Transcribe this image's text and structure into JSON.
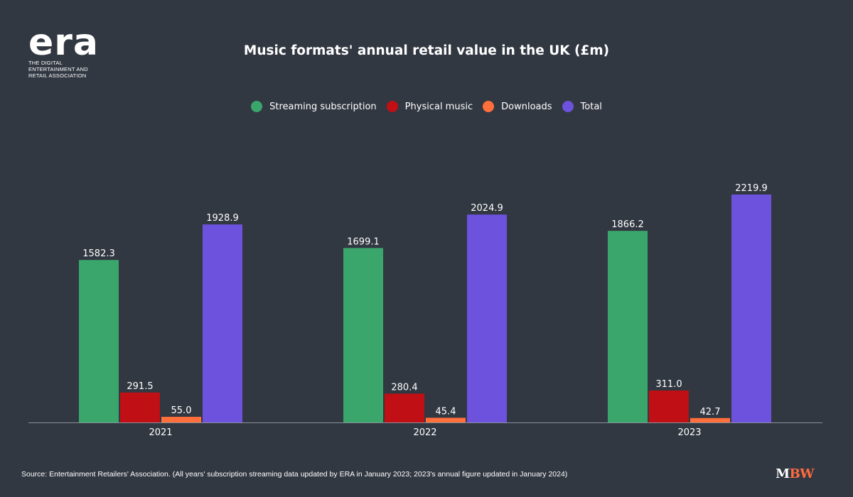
{
  "logo": {
    "wordmark": "era",
    "tagline": "THE DIGITAL ENTERTAINMENT AND RETAIL ASSOCIATION"
  },
  "source_note": "Source: Entertainment Retailers' Association. (All years' subscription streaming data updated by ERA in January 2023; 2023's annual figure updated in January 2024)",
  "publisher_logo": {
    "m": "M",
    "bw": "BW"
  },
  "colors": {
    "background": "#323842",
    "streaming": "#3aa66b",
    "physical": "#c00f15",
    "downloads": "#ff6f3c",
    "total": "#6c52dd",
    "axis": "#8a8f98"
  },
  "chart_data": {
    "type": "bar",
    "title": "Music formats' annual retail value in the UK (£m)",
    "categories": [
      "2021",
      "2022",
      "2023"
    ],
    "series": [
      {
        "name": "Streaming subscription",
        "color": "#3aa66b",
        "values": [
          1582.3,
          1699.1,
          1866.2
        ],
        "labels": [
          "1582.3",
          "1699.1",
          "1866.2"
        ]
      },
      {
        "name": "Physical music",
        "color": "#c00f15",
        "values": [
          291.5,
          280.4,
          311.0
        ],
        "labels": [
          "291.5",
          "280.4",
          "311.0"
        ]
      },
      {
        "name": "Downloads",
        "color": "#ff6f3c",
        "values": [
          55.0,
          45.4,
          42.7
        ],
        "labels": [
          "55.0",
          "45.4",
          "42.7"
        ]
      },
      {
        "name": "Total",
        "color": "#6c52dd",
        "values": [
          1928.9,
          2024.9,
          2219.9
        ],
        "labels": [
          "1928.9",
          "2024.9",
          "2219.9"
        ]
      }
    ],
    "xlabel": "",
    "ylabel": "",
    "ylim": [
      0,
      2400
    ],
    "grid": false,
    "legend": "top-center",
    "data_labels": true
  }
}
